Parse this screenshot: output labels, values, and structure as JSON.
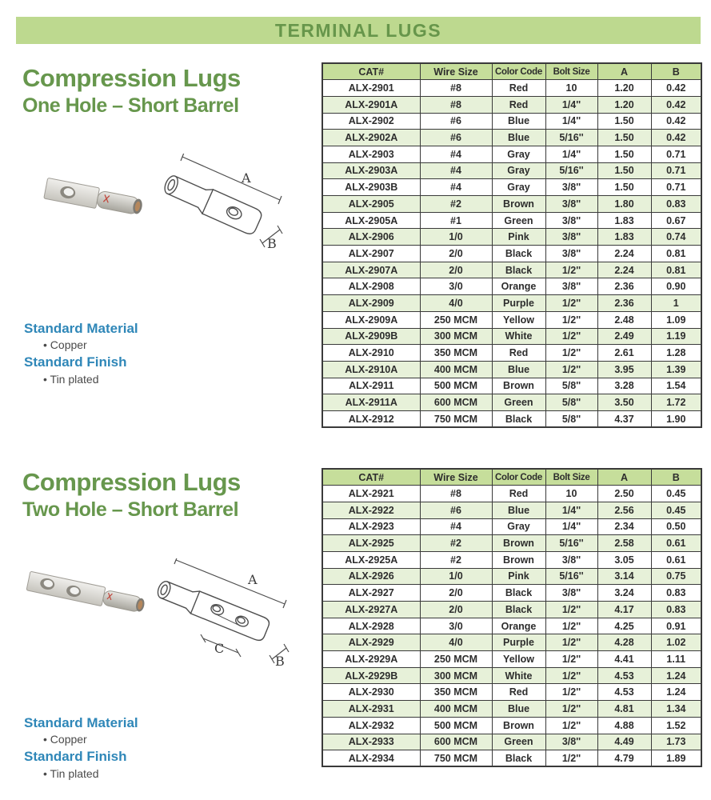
{
  "banner": {
    "title": "TERMINAL LUGS"
  },
  "sections": [
    {
      "title": "Compression Lugs",
      "subtitle": "One Hole – Short Barrel",
      "material_label": "Standard Material",
      "material_value": "• Copper",
      "finish_label": "Standard Finish",
      "finish_value": "• Tin plated",
      "diagram_labels": {
        "a": "A",
        "b": "B"
      },
      "table": {
        "headers": [
          "CAT#",
          "Wire Size",
          "Color Code",
          "Bolt Size",
          "A",
          "B"
        ],
        "rows": [
          [
            "ALX-2901",
            "#8",
            "Red",
            "10",
            "1.20",
            "0.42"
          ],
          [
            "ALX-2901A",
            "#8",
            "Red",
            "1/4''",
            "1.20",
            "0.42"
          ],
          [
            "ALX-2902",
            "#6",
            "Blue",
            "1/4''",
            "1.50",
            "0.42"
          ],
          [
            "ALX-2902A",
            "#6",
            "Blue",
            "5/16''",
            "1.50",
            "0.42"
          ],
          [
            "ALX-2903",
            "#4",
            "Gray",
            "1/4''",
            "1.50",
            "0.71"
          ],
          [
            "ALX-2903A",
            "#4",
            "Gray",
            "5/16''",
            "1.50",
            "0.71"
          ],
          [
            "ALX-2903B",
            "#4",
            "Gray",
            "3/8''",
            "1.50",
            "0.71"
          ],
          [
            "ALX-2905",
            "#2",
            "Brown",
            "3/8''",
            "1.80",
            "0.83"
          ],
          [
            "ALX-2905A",
            "#1",
            "Green",
            "3/8''",
            "1.83",
            "0.67"
          ],
          [
            "ALX-2906",
            "1/0",
            "Pink",
            "3/8''",
            "1.83",
            "0.74"
          ],
          [
            "ALX-2907",
            "2/0",
            "Black",
            "3/8''",
            "2.24",
            "0.81"
          ],
          [
            "ALX-2907A",
            "2/0",
            "Black",
            "1/2''",
            "2.24",
            "0.81"
          ],
          [
            "ALX-2908",
            "3/0",
            "Orange",
            "3/8''",
            "2.36",
            "0.90"
          ],
          [
            "ALX-2909",
            "4/0",
            "Purple",
            "1/2''",
            "2.36",
            "1"
          ],
          [
            "ALX-2909A",
            "250 MCM",
            "Yellow",
            "1/2''",
            "2.48",
            "1.09"
          ],
          [
            "ALX-2909B",
            "300 MCM",
            "White",
            "1/2''",
            "2.49",
            "1.19"
          ],
          [
            "ALX-2910",
            "350 MCM",
            "Red",
            "1/2''",
            "2.61",
            "1.28"
          ],
          [
            "ALX-2910A",
            "400 MCM",
            "Blue",
            "1/2''",
            "3.95",
            "1.39"
          ],
          [
            "ALX-2911",
            "500 MCM",
            "Brown",
            "5/8''",
            "3.28",
            "1.54"
          ],
          [
            "ALX-2911A",
            "600 MCM",
            "Green",
            "5/8''",
            "3.50",
            "1.72"
          ],
          [
            "ALX-2912",
            "750 MCM",
            "Black",
            "5/8''",
            "4.37",
            "1.90"
          ]
        ]
      }
    },
    {
      "title": "Compression Lugs",
      "subtitle": "Two Hole – Short Barrel",
      "material_label": "Standard Material",
      "material_value": "• Copper",
      "finish_label": "Standard Finish",
      "finish_value": "• Tin plated",
      "diagram_labels": {
        "a": "A",
        "b": "B",
        "c": "C"
      },
      "table": {
        "headers": [
          "CAT#",
          "Wire Size",
          "Color Code",
          "Bolt Size",
          "A",
          "B"
        ],
        "rows": [
          [
            "ALX-2921",
            "#8",
            "Red",
            "10",
            "2.50",
            "0.45"
          ],
          [
            "ALX-2922",
            "#6",
            "Blue",
            "1/4''",
            "2.56",
            "0.45"
          ],
          [
            "ALX-2923",
            "#4",
            "Gray",
            "1/4''",
            "2.34",
            "0.50"
          ],
          [
            "ALX-2925",
            "#2",
            "Brown",
            "5/16''",
            "2.58",
            "0.61"
          ],
          [
            "ALX-2925A",
            "#2",
            "Brown",
            "3/8''",
            "3.05",
            "0.61"
          ],
          [
            "ALX-2926",
            "1/0",
            "Pink",
            "5/16''",
            "3.14",
            "0.75"
          ],
          [
            "ALX-2927",
            "2/0",
            "Black",
            "3/8''",
            "3.24",
            "0.83"
          ],
          [
            "ALX-2927A",
            "2/0",
            "Black",
            "1/2''",
            "4.17",
            "0.83"
          ],
          [
            "ALX-2928",
            "3/0",
            "Orange",
            "1/2''",
            "4.25",
            "0.91"
          ],
          [
            "ALX-2929",
            "4/0",
            "Purple",
            "1/2''",
            "4.28",
            "1.02"
          ],
          [
            "ALX-2929A",
            "250 MCM",
            "Yellow",
            "1/2''",
            "4.41",
            "1.11"
          ],
          [
            "ALX-2929B",
            "300 MCM",
            "White",
            "1/2''",
            "4.53",
            "1.24"
          ],
          [
            "ALX-2930",
            "350 MCM",
            "Red",
            "1/2''",
            "4.53",
            "1.24"
          ],
          [
            "ALX-2931",
            "400 MCM",
            "Blue",
            "1/2''",
            "4.81",
            "1.34"
          ],
          [
            "ALX-2932",
            "500 MCM",
            "Brown",
            "1/2''",
            "4.88",
            "1.52"
          ],
          [
            "ALX-2933",
            "600 MCM",
            "Green",
            "3/8''",
            "4.49",
            "1.73"
          ],
          [
            "ALX-2934",
            "750 MCM",
            "Black",
            "1/2''",
            "4.79",
            "1.89"
          ]
        ]
      }
    }
  ],
  "colors": {
    "banner_bg": "#bdd98f",
    "banner_text": "#67964b",
    "heading_green": "#67974d",
    "table_header_bg": "#c6de9b",
    "table_stripe_bg": "#e7f1d9",
    "table_border": "#3a3a3a",
    "label_blue": "#2f87b8",
    "copper": "#b5875c"
  }
}
